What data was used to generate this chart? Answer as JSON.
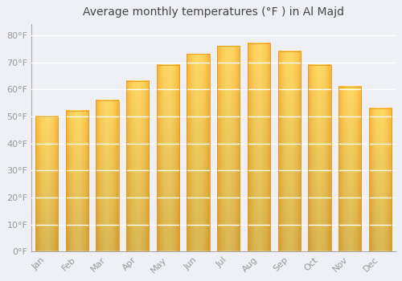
{
  "title": "Average monthly temperatures (°F ) in Al Majd",
  "months": [
    "Jan",
    "Feb",
    "Mar",
    "Apr",
    "May",
    "Jun",
    "Jul",
    "Aug",
    "Sep",
    "Oct",
    "Nov",
    "Dec"
  ],
  "values": [
    50,
    52,
    56,
    63,
    69,
    73,
    76,
    77,
    74,
    69,
    61,
    53
  ],
  "bar_color_left": "#F5A623",
  "bar_color_center": "#FFD966",
  "bar_color_right": "#F5A623",
  "background_color": "#EEF0F5",
  "plot_bg_color": "#EEF0F5",
  "grid_color": "#FFFFFF",
  "ylim": [
    0,
    84
  ],
  "yticks": [
    0,
    10,
    20,
    30,
    40,
    50,
    60,
    70,
    80
  ],
  "title_fontsize": 10,
  "tick_fontsize": 8,
  "tick_color": "#999999",
  "bar_width": 0.75,
  "spine_color": "#AAAAAA"
}
